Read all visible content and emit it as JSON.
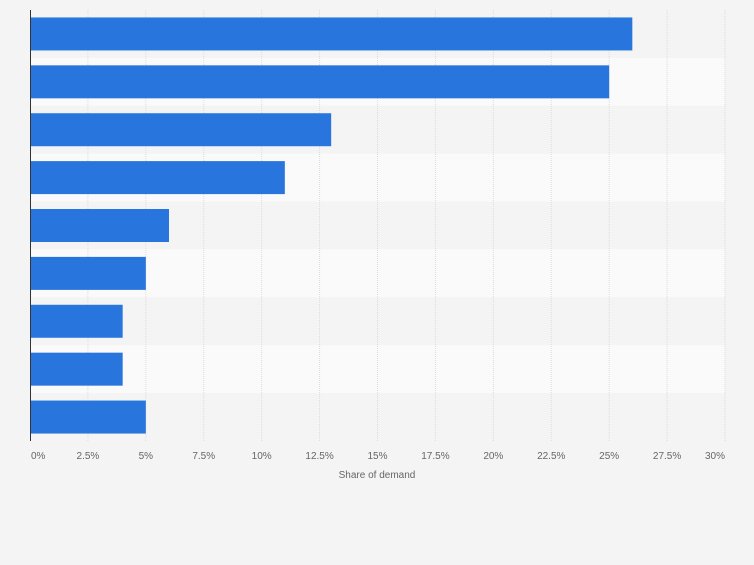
{
  "chart_data": {
    "type": "bar",
    "orientation": "horizontal",
    "title": "",
    "xlabel": "Share of demand",
    "ylabel": "",
    "categories": [
      "",
      "",
      "",
      "",
      "",
      "",
      "",
      "",
      ""
    ],
    "values": [
      26,
      25,
      13,
      11,
      6,
      5,
      4,
      4,
      5
    ],
    "unit": "%",
    "xlim": [
      0,
      30
    ],
    "ticks": [
      "0%",
      "2.5%",
      "5%",
      "7.5%",
      "10%",
      "12.5%",
      "15%",
      "17.5%",
      "20%",
      "22.5%",
      "25%",
      "27.5%",
      "30%"
    ],
    "tick_values": [
      0,
      2.5,
      5,
      7.5,
      10,
      12.5,
      15,
      17.5,
      20,
      22.5,
      25,
      27.5,
      30
    ],
    "grid": true,
    "legend": "none",
    "colors": {
      "bar": "#2876dd",
      "band_light": "#fafafa",
      "band_dark": "#f4f4f4",
      "grid": "#dcdcdc",
      "axis": "#333333",
      "tick_text": "#666666"
    }
  }
}
